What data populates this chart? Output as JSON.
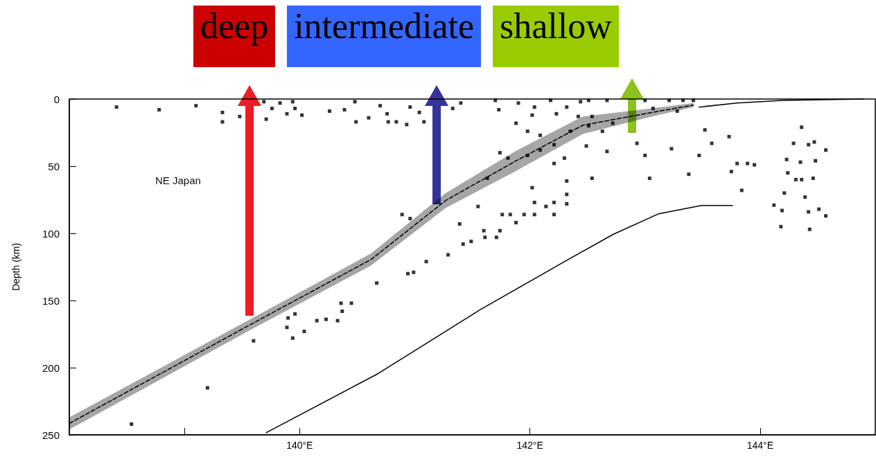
{
  "chart_data": {
    "type": "scatter",
    "ylabel": "Depth (km)",
    "xlim": [
      138,
      145
    ],
    "xticks": [
      {
        "value": 139,
        "label": null
      },
      {
        "value": 140,
        "label": "140°E"
      },
      {
        "value": 142,
        "label": "142°E"
      },
      {
        "value": 144,
        "label": "144°E"
      }
    ],
    "ylim": [
      250,
      0
    ],
    "yticks": [
      0,
      50,
      100,
      150,
      200,
      250
    ],
    "grid": false,
    "annotations": [
      "deep",
      "intermediate",
      "shallow",
      "NE Japan"
    ],
    "series": [
      {
        "color": "#000000",
        "marker": "square",
        "x": [
          138.41,
          138.78,
          139.1,
          139.33,
          139.33,
          139.48,
          139.6,
          139.69,
          139.76,
          139.71,
          139.83,
          139.89,
          139.94,
          139.96,
          140.02,
          140.26,
          140.39,
          140.48,
          140.49,
          140.6,
          140.7,
          140.76,
          140.77,
          140.84,
          140.93,
          140.96,
          141.04,
          141.08,
          141.21,
          141.33,
          141.4,
          140.89,
          140.96,
          141.42,
          141.49,
          141.29,
          141.7,
          141.73,
          141.9,
          142.04,
          142.18,
          141.88,
          141.98,
          142.02,
          142.23,
          142.32,
          142.44,
          142.51,
          142.42,
          142.54,
          142.67,
          142.72,
          142.91,
          143.0,
          143.07,
          143.21,
          143.33,
          143.42,
          143.28,
          142.09,
          142.21,
          142.35,
          142.51,
          142.63,
          141.74,
          141.81,
          141.98,
          142.09,
          142.3,
          142.21,
          142.49,
          142.67,
          142.93,
          143.0,
          143.23,
          143.52,
          143.58,
          143.73,
          143.47,
          143.8,
          143.89,
          143.95,
          143.75,
          143.84,
          143.38,
          143.04,
          142.54,
          142.32,
          142.32,
          142.32,
          142.02,
          141.63,
          142.04,
          142.21,
          142.14,
          142.21,
          142.04,
          141.95,
          141.83,
          141.76,
          141.88,
          141.55,
          141.39,
          141.6,
          141.74,
          141.61,
          141.71,
          144.36,
          144.29,
          144.42,
          144.47,
          144.57,
          144.23,
          144.35,
          144.48,
          144.24,
          144.31,
          144.36,
          144.46,
          144.21,
          144.39,
          144.12,
          144.19,
          144.42,
          144.51,
          144.57,
          144.18,
          144.43,
          141.1,
          140.94,
          140.99,
          140.67,
          140.45,
          140.36,
          140.37,
          140.33,
          140.23,
          140.15,
          140.04,
          139.96,
          139.9,
          139.89,
          139.94,
          139.6,
          139.2,
          138.54
        ],
        "values": [
          6,
          8,
          5,
          10,
          17,
          13,
          null,
          2,
          7,
          15,
          3,
          11,
          2,
          7,
          12,
          9,
          8,
          2,
          17,
          14,
          5,
          11,
          17,
          17,
          19,
          6,
          10,
          17,
          null,
          7,
          3,
          86,
          89,
          108,
          106,
          116,
          1,
          8,
          3,
          6,
          1,
          18,
          24,
          12,
          11,
          6,
          2,
          1,
          13,
          13,
          1,
          18,
          null,
          1,
          7,
          1,
          1,
          1,
          9,
          27,
          34,
          24,
          20,
          24,
          40,
          44,
          42,
          38,
          44,
          48,
          35,
          39,
          33,
          42,
          37,
          23,
          33,
          28,
          42,
          48,
          48,
          49,
          54,
          68,
          56,
          59,
          59,
          61,
          71,
          78,
          66,
          59,
          77,
          77,
          80,
          86,
          86,
          86,
          86,
          86,
          92,
          80,
          93,
          98,
          98,
          103,
          103,
          21,
          33,
          34,
          32,
          38,
          45,
          47,
          46,
          55,
          60,
          60,
          59,
          70,
          73,
          79,
          83,
          84,
          82,
          87,
          95,
          97,
          121,
          130,
          129,
          137,
          152,
          152,
          158,
          165,
          164,
          165,
          173,
          160,
          163,
          170,
          178,
          180,
          215,
          242
        ]
      },
      {
        "type": "line",
        "color": "#000000",
        "marker": "none",
        "line_style": "dashed",
        "x": [
          138.0,
          139.55,
          140.62,
          141.27,
          141.87,
          142.46,
          143.06,
          143.42
        ],
        "values": [
          241.5,
          169,
          119.5,
          75.5,
          46.5,
          19.5,
          10,
          4.5
        ],
        "lower": [
          237,
          165,
          115,
          70,
          39,
          13,
          7,
          3
        ],
        "upper": [
          246,
          173,
          124,
          81,
          54,
          26,
          13,
          6
        ]
      },
      {
        "type": "line",
        "color": "#000000",
        "marker": "none",
        "line_style": "solid",
        "x": [
          139.71,
          140.68,
          141.57,
          142.3,
          142.72,
          143.12,
          143.49,
          143.76
        ],
        "values": [
          248.4,
          204.5,
          156.8,
          121.1,
          100.9,
          85.4,
          79.2,
          79.2
        ]
      },
      {
        "type": "line",
        "color": "#000000",
        "marker": "none",
        "line_style": "solid",
        "x": [
          143.47,
          143.8,
          144.2,
          144.9
        ],
        "values": [
          6,
          3,
          1,
          0
        ]
      }
    ]
  }
}
